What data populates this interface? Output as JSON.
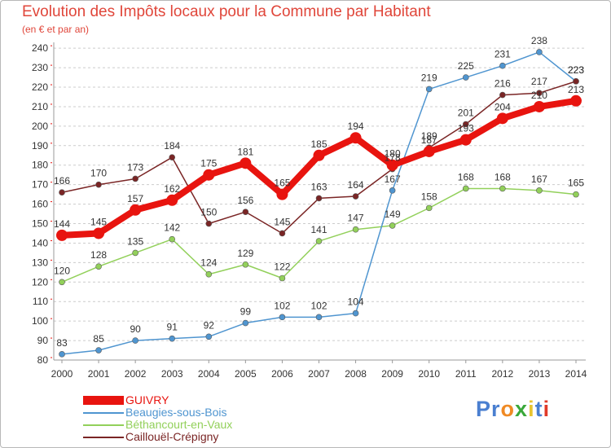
{
  "header": {
    "title": "Evolution des Impôts locaux pour la Commune par Habitant",
    "subtitle": "(en € et par an)"
  },
  "brand": {
    "text": "Proxiti",
    "letters": [
      "P",
      "r",
      "o",
      "x",
      "i",
      "t",
      "i"
    ],
    "colors": [
      "#4a7fd0",
      "#4a7fd0",
      "#f08a24",
      "#3aa83a",
      "#e8c530",
      "#4a7fd0",
      "#e03a2a"
    ]
  },
  "chart_data": {
    "type": "line",
    "title": "Evolution des Impôts locaux pour la Commune par Habitant",
    "xlabel": "",
    "ylabel": "",
    "x": [
      "2000",
      "2001",
      "2002",
      "2003",
      "2004",
      "2005",
      "2006",
      "2007",
      "2008",
      "2009",
      "2010",
      "2011",
      "2012",
      "2013",
      "2014"
    ],
    "yticks": [
      80,
      90,
      100,
      110,
      120,
      130,
      140,
      150,
      160,
      170,
      180,
      190,
      200,
      210,
      220,
      230,
      240
    ],
    "ylim": [
      80,
      243
    ],
    "grid": "horizontal dashed",
    "legend_position": "bottom-left",
    "series": [
      {
        "name": "GUIVRY",
        "color": "#e8140f",
        "values": [
          144,
          145,
          157,
          162,
          175,
          181,
          165,
          185,
          194,
          180,
          187,
          193,
          204,
          210,
          213
        ],
        "labels": [
          "144",
          "145",
          "157",
          "162",
          "175",
          "181",
          "165",
          "185",
          "194",
          "180",
          "187",
          "193",
          "204",
          "210",
          "213"
        ]
      },
      {
        "name": "Beaugies-sous-Bois",
        "color": "#4f95d0",
        "values": [
          83,
          85,
          90,
          91,
          92,
          99,
          102,
          102,
          104,
          167,
          219,
          225,
          231,
          238,
          223
        ],
        "labels": [
          "83",
          "85",
          "90",
          "91",
          "92",
          "99",
          "102",
          "102",
          "104",
          "167",
          "219",
          "225",
          "231",
          "238",
          "223"
        ]
      },
      {
        "name": "Béthancourt-en-Vaux",
        "color": "#92d05a",
        "values": [
          120,
          128,
          135,
          142,
          124,
          129,
          122,
          141,
          147,
          149,
          158,
          168,
          168,
          167,
          165
        ],
        "labels": [
          "120",
          "128",
          "135",
          "142",
          "124",
          "129",
          "122",
          "141",
          "147",
          "149",
          "158",
          "168",
          "168",
          "167",
          "165"
        ]
      },
      {
        "name": "Caillouël-Crépigny",
        "color": "#7a2525",
        "values": [
          166,
          170,
          173,
          184,
          150,
          156,
          145,
          163,
          164,
          178,
          189,
          201,
          216,
          217,
          223
        ],
        "labels": [
          "166",
          "170",
          "173",
          "184",
          "150",
          "156",
          "145",
          "163",
          "164",
          "178",
          "189",
          "201",
          "216",
          "217",
          "223"
        ]
      }
    ]
  }
}
